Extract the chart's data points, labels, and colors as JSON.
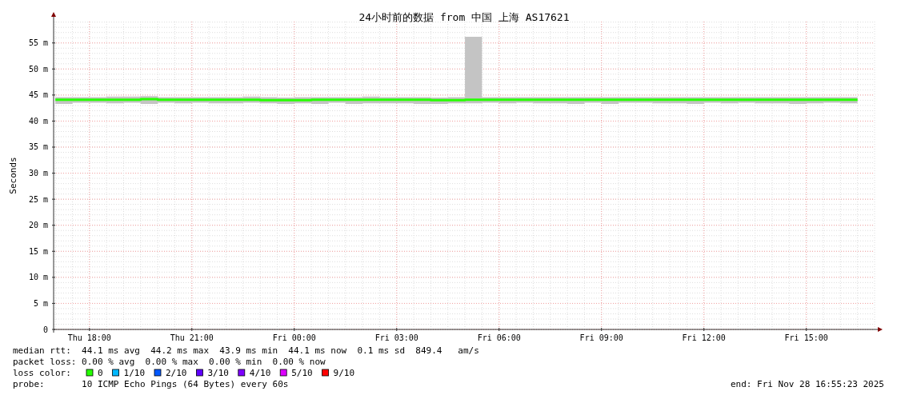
{
  "chart_data": {
    "type": "step",
    "title": "24小时前的数据 from 中国 上海 AS17621",
    "ylabel": "Seconds",
    "x": [
      "2025-11-27T17:00",
      "2025-11-27T17:30",
      "2025-11-27T18:00",
      "2025-11-27T18:30",
      "2025-11-27T19:00",
      "2025-11-27T19:30",
      "2025-11-27T20:00",
      "2025-11-27T20:30",
      "2025-11-27T21:00",
      "2025-11-27T21:30",
      "2025-11-27T22:00",
      "2025-11-27T22:30",
      "2025-11-27T23:00",
      "2025-11-27T23:30",
      "2025-11-28T00:00",
      "2025-11-28T00:30",
      "2025-11-28T01:00",
      "2025-11-28T01:30",
      "2025-11-28T02:00",
      "2025-11-28T02:30",
      "2025-11-28T03:00",
      "2025-11-28T03:30",
      "2025-11-28T04:00",
      "2025-11-28T04:30",
      "2025-11-28T05:00",
      "2025-11-28T05:30",
      "2025-11-28T06:00",
      "2025-11-28T06:30",
      "2025-11-28T07:00",
      "2025-11-28T07:30",
      "2025-11-28T08:00",
      "2025-11-28T08:30",
      "2025-11-28T09:00",
      "2025-11-28T09:30",
      "2025-11-28T10:00",
      "2025-11-28T10:30",
      "2025-11-28T11:00",
      "2025-11-28T11:30",
      "2025-11-28T12:00",
      "2025-11-28T12:30",
      "2025-11-28T13:00",
      "2025-11-28T13:30",
      "2025-11-28T14:00",
      "2025-11-28T14:30",
      "2025-11-28T15:00",
      "2025-11-28T15:30",
      "2025-11-28T16:00",
      "2025-11-28T16:30"
    ],
    "series": [
      {
        "name": "0",
        "color": "#26ff00",
        "values": [
          44.1,
          44.1,
          44.1,
          44.1,
          44.1,
          44.2,
          44.1,
          44.1,
          44.1,
          44.1,
          44.1,
          44.1,
          44.0,
          44.0,
          44.0,
          44.1,
          44.1,
          44.1,
          44.1,
          44.1,
          44.1,
          44.1,
          44.0,
          44.0,
          44.1,
          44.1,
          44.1,
          44.1,
          44.1,
          44.1,
          44.1,
          44.1,
          44.1,
          44.1,
          44.1,
          44.1,
          44.1,
          44.1,
          44.1,
          44.1,
          44.1,
          44.1,
          44.1,
          44.1,
          44.1,
          44.1,
          44.1,
          44.1
        ],
        "lower": [
          43.3,
          43.5,
          43.5,
          43.4,
          43.5,
          43.3,
          43.5,
          43.4,
          43.5,
          43.4,
          43.4,
          43.5,
          43.4,
          43.3,
          43.4,
          43.3,
          43.5,
          43.3,
          43.4,
          43.4,
          43.4,
          43.3,
          43.3,
          43.4,
          43.4,
          43.5,
          43.4,
          43.5,
          43.4,
          43.4,
          43.3,
          43.5,
          43.3,
          43.5,
          43.5,
          43.4,
          43.4,
          43.3,
          43.5,
          43.4,
          43.5,
          43.4,
          43.4,
          43.3,
          43.4,
          43.5,
          43.4,
          43.3
        ],
        "upper": [
          44.6,
          44.6,
          44.6,
          44.7,
          44.7,
          44.8,
          44.6,
          44.6,
          44.6,
          44.6,
          44.6,
          44.7,
          44.6,
          44.5,
          44.6,
          44.6,
          44.6,
          44.6,
          44.7,
          44.6,
          44.6,
          44.6,
          44.5,
          44.6,
          56.2,
          44.6,
          44.6,
          44.6,
          44.6,
          44.6,
          44.6,
          44.6,
          44.6,
          44.6,
          44.6,
          44.6,
          44.6,
          44.6,
          44.6,
          44.6,
          44.6,
          44.6,
          44.6,
          44.6,
          44.6,
          44.6,
          44.6,
          44.6
        ]
      },
      {
        "name": "1/10",
        "color": "#00b8ff",
        "values": [
          null,
          null,
          null,
          null,
          null,
          null,
          null,
          null,
          null,
          null,
          null,
          null,
          null,
          null,
          null,
          null,
          null,
          null,
          null,
          null,
          null,
          null,
          null,
          null,
          null,
          null,
          null,
          null,
          null,
          null,
          null,
          null,
          null,
          null,
          null,
          null,
          null,
          null,
          null,
          null,
          null,
          null,
          null,
          null,
          null,
          null,
          null,
          null
        ]
      },
      {
        "name": "2/10",
        "color": "#0059ff",
        "values": [
          null,
          null,
          null,
          null,
          null,
          null,
          null,
          null,
          null,
          null,
          null,
          null,
          null,
          null,
          null,
          null,
          null,
          null,
          null,
          null,
          null,
          null,
          null,
          null,
          null,
          null,
          null,
          null,
          null,
          null,
          null,
          null,
          null,
          null,
          null,
          null,
          null,
          null,
          null,
          null,
          null,
          null,
          null,
          null,
          null,
          null,
          null,
          null
        ]
      },
      {
        "name": "3/10",
        "color": "#5e00ff",
        "values": [
          null,
          null,
          null,
          null,
          null,
          null,
          null,
          null,
          null,
          null,
          null,
          null,
          null,
          null,
          null,
          null,
          null,
          null,
          null,
          null,
          null,
          null,
          null,
          null,
          null,
          null,
          null,
          null,
          null,
          null,
          null,
          null,
          null,
          null,
          null,
          null,
          null,
          null,
          null,
          null,
          null,
          null,
          null,
          null,
          null,
          null,
          null,
          null
        ]
      },
      {
        "name": "4/10",
        "color": "#7e00ff",
        "values": [
          null,
          null,
          null,
          null,
          null,
          null,
          null,
          null,
          null,
          null,
          null,
          null,
          null,
          null,
          null,
          null,
          null,
          null,
          null,
          null,
          null,
          null,
          null,
          null,
          null,
          null,
          null,
          null,
          null,
          null,
          null,
          null,
          null,
          null,
          null,
          null,
          null,
          null,
          null,
          null,
          null,
          null,
          null,
          null,
          null,
          null,
          null,
          null
        ]
      },
      {
        "name": "5/10",
        "color": "#dd00ff",
        "values": [
          null,
          null,
          null,
          null,
          null,
          null,
          null,
          null,
          null,
          null,
          null,
          null,
          null,
          null,
          null,
          null,
          null,
          null,
          null,
          null,
          null,
          null,
          null,
          null,
          null,
          null,
          null,
          null,
          null,
          null,
          null,
          null,
          null,
          null,
          null,
          null,
          null,
          null,
          null,
          null,
          null,
          null,
          null,
          null,
          null,
          null,
          null,
          null
        ]
      },
      {
        "name": "9/10",
        "color": "#ff0000",
        "values": [
          null,
          null,
          null,
          null,
          null,
          null,
          null,
          null,
          null,
          null,
          null,
          null,
          null,
          null,
          null,
          null,
          null,
          null,
          null,
          null,
          null,
          null,
          null,
          null,
          null,
          null,
          null,
          null,
          null,
          null,
          null,
          null,
          null,
          null,
          null,
          null,
          null,
          null,
          null,
          null,
          null,
          null,
          null,
          null,
          null,
          null,
          null,
          null
        ]
      }
    ],
    "legend_title": "loss color:",
    "legend": "bottom left",
    "xlim": [
      "2025-11-27T16:57",
      "2025-11-28T17:00"
    ],
    "xticks": [
      {
        "value": "2025-11-27T18:00",
        "label": "Thu 18:00"
      },
      {
        "value": "2025-11-27T21:00",
        "label": "Thu 21:00"
      },
      {
        "value": "2025-11-28T00:00",
        "label": "Fri 00:00"
      },
      {
        "value": "2025-11-28T03:00",
        "label": "Fri 03:00"
      },
      {
        "value": "2025-11-28T06:00",
        "label": "Fri 06:00"
      },
      {
        "value": "2025-11-28T09:00",
        "label": "Fri 09:00"
      },
      {
        "value": "2025-11-28T12:00",
        "label": "Fri 12:00"
      },
      {
        "value": "2025-11-28T15:00",
        "label": "Fri 15:00"
      }
    ],
    "ylim": [
      0,
      59.1
    ],
    "yticks": [
      0,
      {
        "value": 5,
        "label": "5 m"
      },
      {
        "value": 10,
        "label": "10 m"
      },
      {
        "value": 15,
        "label": "15 m"
      },
      {
        "value": 20,
        "label": "20 m"
      },
      {
        "value": 25,
        "label": "25 m"
      },
      {
        "value": 30,
        "label": "30 m"
      },
      {
        "value": 35,
        "label": "35 m"
      },
      {
        "value": 40,
        "label": "40 m"
      },
      {
        "value": 45,
        "label": "45 m"
      },
      {
        "value": 50,
        "label": "50 m"
      },
      {
        "value": 55,
        "label": "55 m"
      }
    ],
    "grid": true,
    "annotations": [
      "median rtt:  44.1 ms avg  44.2 ms max  43.9 ms min  44.1 ms now  0.1 ms sd  849.4   am/s",
      "packet loss: 0.00 % avg  0.00 % max  0.00 % min  0.00 % now",
      "probe:       10 ICMP Echo Pings (64 Bytes) every 60s",
      "end: Fri Nov 28 16:55:23 2025"
    ]
  }
}
